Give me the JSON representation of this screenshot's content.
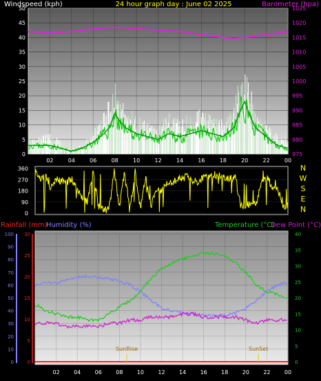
{
  "header": {
    "left": "Windspeed (kph)",
    "center": "24 hour graph day : June 02 2025",
    "right": "Barometer (hpa)"
  },
  "colors": {
    "bg": "#000000",
    "title_yellow": "#ffff00",
    "windspeed": "#ffffff",
    "wind_avg": "#00cc00",
    "gust_fill": "#cfe8cf",
    "barometer": "#e020e0",
    "direction": "#ffff00",
    "humidity": "#8080ff",
    "temperature": "#22cc22",
    "dewpoint": "#cc22cc",
    "rainfall": "#ff2020",
    "sun_marker": "#ddcc00"
  },
  "x_ticks": [
    "02",
    "04",
    "06",
    "08",
    "10",
    "12",
    "14",
    "16",
    "18",
    "20",
    "22",
    "00"
  ],
  "chart_data": [
    {
      "type": "line",
      "name": "wind-barometer",
      "y_left": {
        "label": "Windspeed (kph)",
        "min": 0,
        "max": 50,
        "ticks": [
          "0",
          "5",
          "10",
          "15",
          "20",
          "25",
          "30",
          "35",
          "40",
          "45",
          "50"
        ]
      },
      "y_right": {
        "label": "Barometer (hpa)",
        "min": 975,
        "max": 1025,
        "ticks": [
          "975",
          "980",
          "985",
          "990",
          "995",
          "1000",
          "1005",
          "1010",
          "1015",
          "1020",
          "1025"
        ]
      },
      "x_hours": [
        0,
        1,
        2,
        3,
        4,
        5,
        6,
        7,
        7.5,
        8,
        8.5,
        9,
        10,
        11,
        12,
        13,
        14,
        15,
        16,
        17,
        18,
        19,
        19.5,
        20,
        20.5,
        21,
        22,
        23,
        24
      ],
      "wind_gust": [
        6,
        5,
        6,
        4,
        2,
        3,
        7,
        12,
        16,
        22,
        18,
        14,
        12,
        9,
        8,
        12,
        10,
        12,
        14,
        11,
        10,
        14,
        22,
        28,
        20,
        14,
        10,
        6,
        4
      ],
      "wind_avg": [
        3,
        3,
        3,
        2,
        1,
        2,
        4,
        7,
        9,
        14,
        11,
        9,
        7,
        6,
        5,
        7,
        6,
        7,
        8,
        7,
        6,
        9,
        14,
        18,
        13,
        9,
        6,
        3,
        2
      ],
      "barometer_x": [
        0,
        2,
        4,
        6,
        8,
        10,
        12,
        14,
        16,
        18,
        19,
        20,
        22,
        24
      ],
      "barometer": [
        1017,
        1016.5,
        1017,
        1018,
        1018.5,
        1018,
        1017.5,
        1017,
        1016,
        1015,
        1014.7,
        1015,
        1016,
        1017
      ]
    },
    {
      "type": "line",
      "name": "wind-direction",
      "y_left": {
        "min": 0,
        "max": 360,
        "ticks": [
          "0",
          "90",
          "180",
          "270",
          "360"
        ]
      },
      "y_right_labels": [
        "N",
        "W",
        "S",
        "E",
        "N"
      ],
      "x_hours": [
        0,
        0.5,
        1,
        1.5,
        2,
        2.5,
        3,
        3.5,
        4,
        4.5,
        5,
        5.5,
        6,
        6.5,
        7,
        7.5,
        8,
        8.5,
        9,
        9.5,
        10,
        10.5,
        11,
        11.5,
        12,
        12.5,
        13,
        13.5,
        14,
        14.5,
        15,
        15.5,
        16,
        16.5,
        17,
        17.5,
        18,
        18.5,
        19,
        19.5,
        20,
        20.5,
        21,
        21.5,
        22,
        22.5,
        23,
        23.5,
        24
      ],
      "direction": [
        330,
        280,
        290,
        200,
        270,
        260,
        250,
        280,
        180,
        120,
        90,
        340,
        60,
        20,
        30,
        340,
        50,
        340,
        30,
        330,
        40,
        300,
        60,
        200,
        180,
        250,
        240,
        270,
        280,
        300,
        260,
        250,
        290,
        300,
        310,
        300,
        280,
        280,
        300,
        60,
        70,
        80,
        90,
        250,
        280,
        220,
        210,
        60,
        60
      ]
    },
    {
      "type": "line",
      "name": "temp-humidity-rain",
      "header_left": [
        "Rainfall (mm)",
        "Humidity (%)"
      ],
      "header_right": [
        "Temperature (°C)",
        "Dew Point (°C)"
      ],
      "y_humidity": {
        "min": 0,
        "max": 100,
        "ticks": [
          "0",
          "10",
          "20",
          "30",
          "40",
          "50",
          "60",
          "70",
          "80",
          "90",
          "100"
        ]
      },
      "y_rain": {
        "min": 0,
        "max": 30,
        "ticks": [
          "0",
          "5",
          "10",
          "15",
          "20",
          "25",
          "30"
        ]
      },
      "y_temp": {
        "min": 0,
        "max": 40,
        "ticks": [
          "0",
          "5",
          "10",
          "15",
          "20",
          "25",
          "30",
          "35",
          "40"
        ]
      },
      "x_hours": [
        0,
        1,
        2,
        3,
        4,
        5,
        6,
        7,
        8,
        9,
        10,
        11,
        12,
        13,
        14,
        15,
        16,
        17,
        18,
        19,
        20,
        21,
        22,
        23,
        24
      ],
      "humidity": [
        60,
        62,
        62,
        64,
        66,
        67,
        66,
        65,
        63,
        60,
        55,
        48,
        42,
        40,
        38,
        37,
        36,
        36,
        36,
        38,
        42,
        48,
        55,
        60,
        62
      ],
      "temperature": [
        18,
        16,
        15,
        14,
        14,
        13,
        13,
        15,
        17,
        19,
        22,
        26,
        29,
        31,
        32,
        33,
        34,
        34,
        33,
        31,
        28,
        24,
        22,
        21,
        20
      ],
      "dewpoint": [
        12,
        12,
        12,
        11,
        11,
        11,
        11,
        12,
        12,
        13,
        13,
        14,
        14,
        14,
        15,
        15,
        14,
        14,
        14,
        14,
        13,
        12,
        13,
        13,
        13
      ],
      "rainfall": [
        0,
        0,
        0,
        0,
        0,
        0,
        0,
        0,
        0,
        0,
        0,
        0,
        0,
        0,
        0,
        0,
        0,
        0,
        0,
        0,
        0,
        0,
        0,
        0,
        0
      ],
      "annotations": [
        {
          "label": "SunRise",
          "hour": 8.7
        },
        {
          "label": "SunSet",
          "hour": 21.2
        }
      ]
    }
  ]
}
